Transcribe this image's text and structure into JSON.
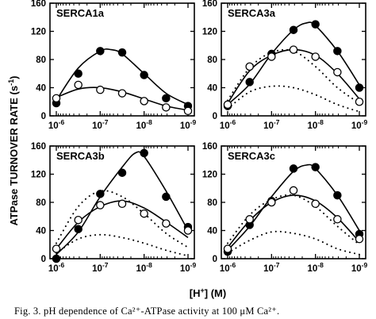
{
  "y_axis_title": "ATPase TURNOVER RATE",
  "y_axis_unit": "(s",
  "y_axis_unit_sup": "-1",
  "y_axis_unit_close": ")",
  "x_axis_title_a": "[H",
  "x_axis_title_sup": "+",
  "x_axis_title_b": "] (M)",
  "caption": "Fig. 3. pH dependence of Ca²⁺-ATPase activity at 100 μM Ca²⁺.",
  "chart_data": [
    {
      "type": "scatter",
      "title": "SERCA1a",
      "x_scale": "log-reversed",
      "xlim": [
        1e-06,
        1e-09
      ],
      "xticks": [
        "10-6",
        "10-7",
        "10-8",
        "10-9"
      ],
      "ylim": [
        0,
        160
      ],
      "yticks": [
        0,
        40,
        80,
        120,
        160
      ],
      "series": [
        {
          "marker": "filled-circle",
          "x": [
            1e-06,
            3.16e-07,
            1e-07,
            3.16e-08,
            1e-08,
            3.16e-09,
            1e-09
          ],
          "y": [
            18,
            60,
            92,
            90,
            58,
            25,
            14
          ],
          "fit": [
            [
              1e-06,
              22
            ],
            [
              3.16e-07,
              68
            ],
            [
              1e-07,
              92
            ],
            [
              5.6e-08,
              94
            ],
            [
              3.16e-08,
              88
            ],
            [
              1e-08,
              60
            ],
            [
              3.16e-09,
              32
            ],
            [
              1e-09,
              16
            ]
          ]
        },
        {
          "marker": "open-circle",
          "x": [
            1e-06,
            3.16e-07,
            1e-07,
            3.16e-08,
            1e-08,
            3.16e-09,
            1e-09
          ],
          "y": [
            25,
            44,
            37,
            32,
            21,
            12,
            7
          ],
          "fit": [
            [
              1e-06,
              26
            ],
            [
              3.16e-07,
              38
            ],
            [
              1e-07,
              40
            ],
            [
              3.16e-08,
              34
            ],
            [
              1e-08,
              24
            ],
            [
              3.16e-09,
              14
            ],
            [
              1e-09,
              8
            ]
          ]
        }
      ],
      "dotted": []
    },
    {
      "type": "scatter",
      "title": "SERCA3a",
      "x_scale": "log-reversed",
      "xlim": [
        1e-06,
        1e-09
      ],
      "xticks": [
        "10-6",
        "10-7",
        "10-8",
        "10-9"
      ],
      "ylim": [
        0,
        160
      ],
      "yticks": [
        0,
        40,
        80,
        120,
        160
      ],
      "series": [
        {
          "marker": "filled-circle",
          "x": [
            1e-06,
            3.16e-07,
            1e-07,
            3.16e-08,
            1e-08,
            3.16e-09,
            1e-09
          ],
          "y": [
            14,
            48,
            88,
            122,
            130,
            92,
            40
          ],
          "fit": [
            [
              1e-06,
              16
            ],
            [
              3.16e-07,
              45
            ],
            [
              1e-07,
              88
            ],
            [
              3.16e-08,
              122
            ],
            [
              1.6e-08,
              132
            ],
            [
              1e-08,
              128
            ],
            [
              3.16e-09,
              92
            ],
            [
              1e-09,
              44
            ]
          ]
        },
        {
          "marker": "open-circle",
          "x": [
            1e-06,
            3.16e-07,
            1e-07,
            3.16e-08,
            1e-08,
            3.16e-09,
            1e-09
          ],
          "y": [
            16,
            70,
            84,
            94,
            84,
            62,
            20
          ],
          "fit": [
            [
              1e-06,
              18
            ],
            [
              3.16e-07,
              64
            ],
            [
              1e-07,
              86
            ],
            [
              3.16e-08,
              94
            ],
            [
              1e-08,
              86
            ],
            [
              3.16e-09,
              60
            ],
            [
              1e-09,
              24
            ]
          ]
        }
      ],
      "dotted": [
        [
          [
            1e-06,
            22
          ],
          [
            3.16e-07,
            68
          ],
          [
            1e-07,
            90
          ],
          [
            3.16e-08,
            92
          ],
          [
            1e-08,
            70
          ],
          [
            3.16e-09,
            40
          ],
          [
            1e-09,
            18
          ]
        ],
        [
          [
            1e-06,
            10
          ],
          [
            3.16e-07,
            34
          ],
          [
            1e-07,
            42
          ],
          [
            3.16e-08,
            40
          ],
          [
            1e-08,
            30
          ],
          [
            3.16e-09,
            16
          ],
          [
            1e-09,
            6
          ]
        ]
      ]
    },
    {
      "type": "scatter",
      "title": "SERCA3b",
      "x_scale": "log-reversed",
      "xlim": [
        1e-06,
        1e-09
      ],
      "xticks": [
        "10-6",
        "10-7",
        "10-8",
        "10-9"
      ],
      "ylim": [
        0,
        160
      ],
      "yticks": [
        0,
        40,
        80,
        120,
        160
      ],
      "series": [
        {
          "marker": "filled-circle",
          "x": [
            1e-06,
            3.16e-07,
            1e-07,
            3.16e-08,
            1e-08,
            3.16e-09,
            1e-09
          ],
          "y": [
            0,
            42,
            92,
            122,
            150,
            88,
            45
          ],
          "fit": [
            [
              1e-06,
              6
            ],
            [
              3.16e-07,
              38
            ],
            [
              1e-07,
              88
            ],
            [
              3.16e-08,
              130
            ],
            [
              1.6e-08,
              150
            ],
            [
              1e-08,
              145
            ],
            [
              3.16e-09,
              96
            ],
            [
              1e-09,
              40
            ]
          ]
        },
        {
          "marker": "open-circle",
          "x": [
            1e-06,
            3.16e-07,
            1e-07,
            3.16e-08,
            1e-08,
            3.16e-09,
            1e-09
          ],
          "y": [
            14,
            55,
            76,
            78,
            64,
            50,
            40
          ],
          "fit": [
            [
              1e-06,
              14
            ],
            [
              3.16e-07,
              52
            ],
            [
              1e-07,
              74
            ],
            [
              3.16e-08,
              82
            ],
            [
              1e-08,
              72
            ],
            [
              3.16e-09,
              52
            ],
            [
              1e-09,
              30
            ]
          ]
        }
      ],
      "dotted": [
        [
          [
            1e-06,
            22
          ],
          [
            3.16e-07,
            74
          ],
          [
            1e-07,
            96
          ],
          [
            3.16e-08,
            88
          ],
          [
            1e-08,
            64
          ],
          [
            3.16e-09,
            36
          ],
          [
            1e-09,
            16
          ]
        ],
        [
          [
            1e-06,
            8
          ],
          [
            3.16e-07,
            28
          ],
          [
            1e-07,
            34
          ],
          [
            3.16e-08,
            30
          ],
          [
            1e-08,
            22
          ],
          [
            3.16e-09,
            12
          ],
          [
            1e-09,
            4
          ]
        ]
      ]
    },
    {
      "type": "scatter",
      "title": "SERCA3c",
      "x_scale": "log-reversed",
      "xlim": [
        1e-06,
        1e-09
      ],
      "xticks": [
        "10-6",
        "10-7",
        "10-8",
        "10-9"
      ],
      "ylim": [
        0,
        160
      ],
      "yticks": [
        0,
        40,
        80,
        120,
        160
      ],
      "series": [
        {
          "marker": "filled-circle",
          "x": [
            1e-06,
            3.16e-07,
            1e-07,
            3.16e-08,
            1e-08,
            3.16e-09,
            1e-09
          ],
          "y": [
            10,
            48,
            82,
            128,
            130,
            90,
            35
          ],
          "fit": [
            [
              1e-06,
              12
            ],
            [
              3.16e-07,
              46
            ],
            [
              1e-07,
              88
            ],
            [
              3.16e-08,
              124
            ],
            [
              1.6e-08,
              133
            ],
            [
              1e-08,
              128
            ],
            [
              3.16e-09,
              90
            ],
            [
              1e-09,
              40
            ]
          ]
        },
        {
          "marker": "open-circle",
          "x": [
            1e-06,
            3.16e-07,
            1e-07,
            3.16e-08,
            1e-08,
            3.16e-09,
            1e-09
          ],
          "y": [
            14,
            56,
            80,
            97,
            78,
            56,
            28
          ],
          "fit": [
            [
              1e-06,
              16
            ],
            [
              3.16e-07,
              54
            ],
            [
              1e-07,
              80
            ],
            [
              3.16e-08,
              90
            ],
            [
              1e-08,
              82
            ],
            [
              3.16e-09,
              58
            ],
            [
              1e-09,
              24
            ]
          ]
        }
      ],
      "dotted": [
        [
          [
            1e-06,
            22
          ],
          [
            3.16e-07,
            62
          ],
          [
            1e-07,
            84
          ],
          [
            3.16e-08,
            90
          ],
          [
            1e-08,
            74
          ],
          [
            3.16e-09,
            46
          ],
          [
            1e-09,
            20
          ]
        ],
        [
          [
            1e-06,
            8
          ],
          [
            3.16e-07,
            26
          ],
          [
            1e-07,
            38
          ],
          [
            3.16e-08,
            36
          ],
          [
            1e-08,
            28
          ],
          [
            3.16e-09,
            14
          ],
          [
            1e-09,
            6
          ]
        ]
      ]
    }
  ]
}
